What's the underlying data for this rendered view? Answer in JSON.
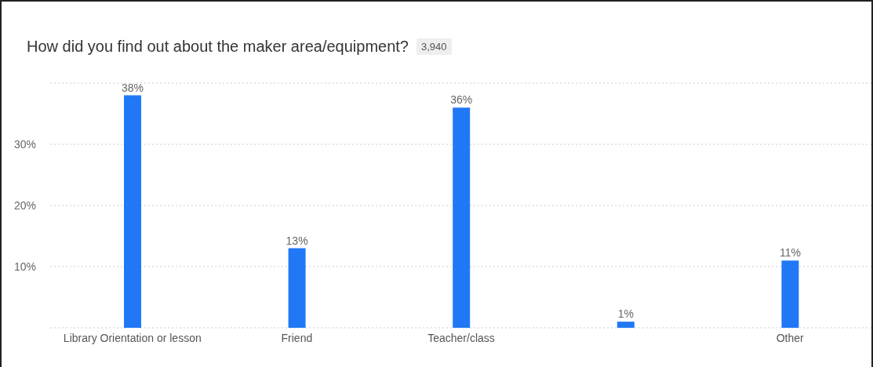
{
  "chart_data": {
    "type": "bar",
    "title": "How did you find out about the maker area/equipment?",
    "annotations": [
      "3,940"
    ],
    "categories": [
      "Library Orientation or lesson",
      "Friend",
      "Teacher/class",
      null,
      "Other"
    ],
    "values": [
      38,
      13,
      36,
      1,
      11
    ],
    "color": "#2178f6",
    "value_labels": [
      "38%",
      "13%",
      "36%",
      "1%",
      "11%"
    ],
    "ylim": [
      0,
      40
    ],
    "yticks": [
      {
        "value": 0,
        "label": null
      },
      {
        "value": 10,
        "label": "10%"
      },
      {
        "value": 20,
        "label": "20%"
      },
      {
        "value": 30,
        "label": "30%"
      }
    ],
    "grid": "y",
    "legend": false
  }
}
